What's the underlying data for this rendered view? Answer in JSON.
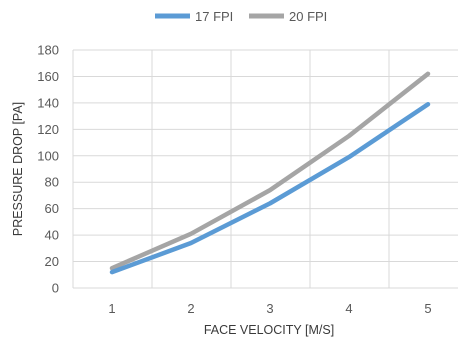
{
  "chart_data": {
    "type": "line",
    "x": [
      1,
      2,
      3,
      4,
      5
    ],
    "series": [
      {
        "name": "17 FPI",
        "values": [
          12,
          34,
          64,
          99,
          139
        ],
        "color": "#5B9BD5"
      },
      {
        "name": "20 FPI",
        "values": [
          15,
          41,
          74,
          115,
          162
        ],
        "color": "#A5A5A5"
      }
    ],
    "xlabel": "FACE VELOCITY [M/S]",
    "ylabel": "PRESSURE DROP  [PA]",
    "xticks": [
      "1",
      "2",
      "3",
      "4",
      "5"
    ],
    "yticks": [
      "0",
      "20",
      "40",
      "60",
      "80",
      "100",
      "120",
      "140",
      "160",
      "180"
    ],
    "ylim": [
      0,
      180
    ],
    "grid": true,
    "legend": "top-center",
    "gridColor": "#d9d9d9"
  }
}
